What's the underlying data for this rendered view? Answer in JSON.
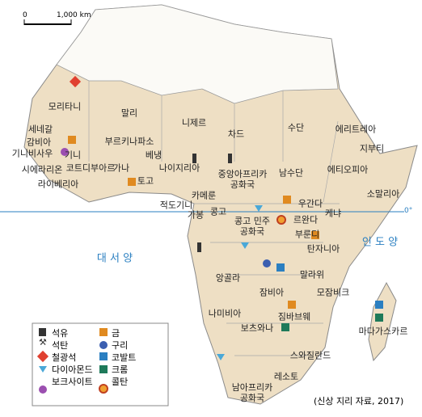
{
  "scale": {
    "zero": "0",
    "distance": "1,000 km"
  },
  "countries": [
    "모리타니",
    "말리",
    "니제르",
    "차드",
    "수단",
    "에리트레아",
    "지부티",
    "세네갈",
    "감비아",
    "기니비사우",
    "기니",
    "부르키나파소",
    "베냉",
    "시에라리온",
    "코트디부아르",
    "가나",
    "토고",
    "나이지리아",
    "라이베리아",
    "중앙아프리카 공화국",
    "남수단",
    "에티오피아",
    "소말리아",
    "카메룬",
    "적도기니",
    "가봉",
    "콩고",
    "콩고 민주 공화국",
    "우간다",
    "케냐",
    "르완다",
    "부룬디",
    "탄자니아",
    "앙골라",
    "말라위",
    "잠비아",
    "모잠비크",
    "나미비아",
    "짐바브웨",
    "보츠와나",
    "마다가스카르",
    "스와질란드",
    "레소토",
    "남아프리카 공화국"
  ],
  "oceans": {
    "atlantic": "대 서 양",
    "indian": "인 도 양"
  },
  "equator": "0°",
  "legend": [
    "석유",
    "석탄",
    "철광석",
    "다이아몬드",
    "보크사이트",
    "금",
    "구리",
    "코발트",
    "크롬",
    "콜탄"
  ],
  "source": "(신상 지리 자료, 2017)"
}
